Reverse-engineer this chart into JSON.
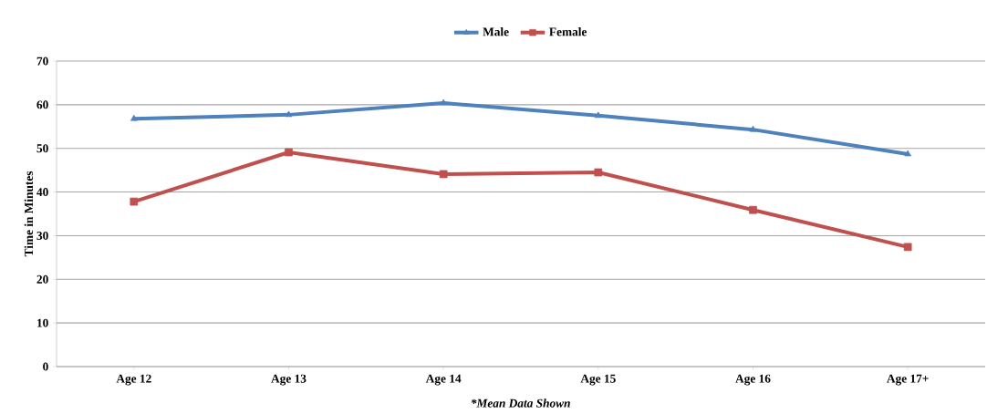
{
  "chart_data": {
    "type": "line",
    "ylabel": "Time in Minutes",
    "categories": [
      "Age 12",
      "Age 13",
      "Age 14",
      "Age 15",
      "Age 16",
      "Age 17+"
    ],
    "series": [
      {
        "name": "Male",
        "color": "#4f81bd",
        "marker": "triangle",
        "values": [
          56.8,
          57.7,
          60.4,
          57.5,
          54.3,
          48.7
        ]
      },
      {
        "name": "Female",
        "color": "#c0504d",
        "marker": "square",
        "values": [
          37.8,
          49.1,
          44.1,
          44.5,
          35.9,
          27.4
        ]
      }
    ],
    "ylim": [
      0,
      70
    ],
    "yticks": [
      0,
      10,
      20,
      30,
      40,
      50,
      60,
      70
    ],
    "grid": "y",
    "legend": "top",
    "line_style": "solid",
    "annotations": [
      "*Mean Data Shown"
    ]
  }
}
